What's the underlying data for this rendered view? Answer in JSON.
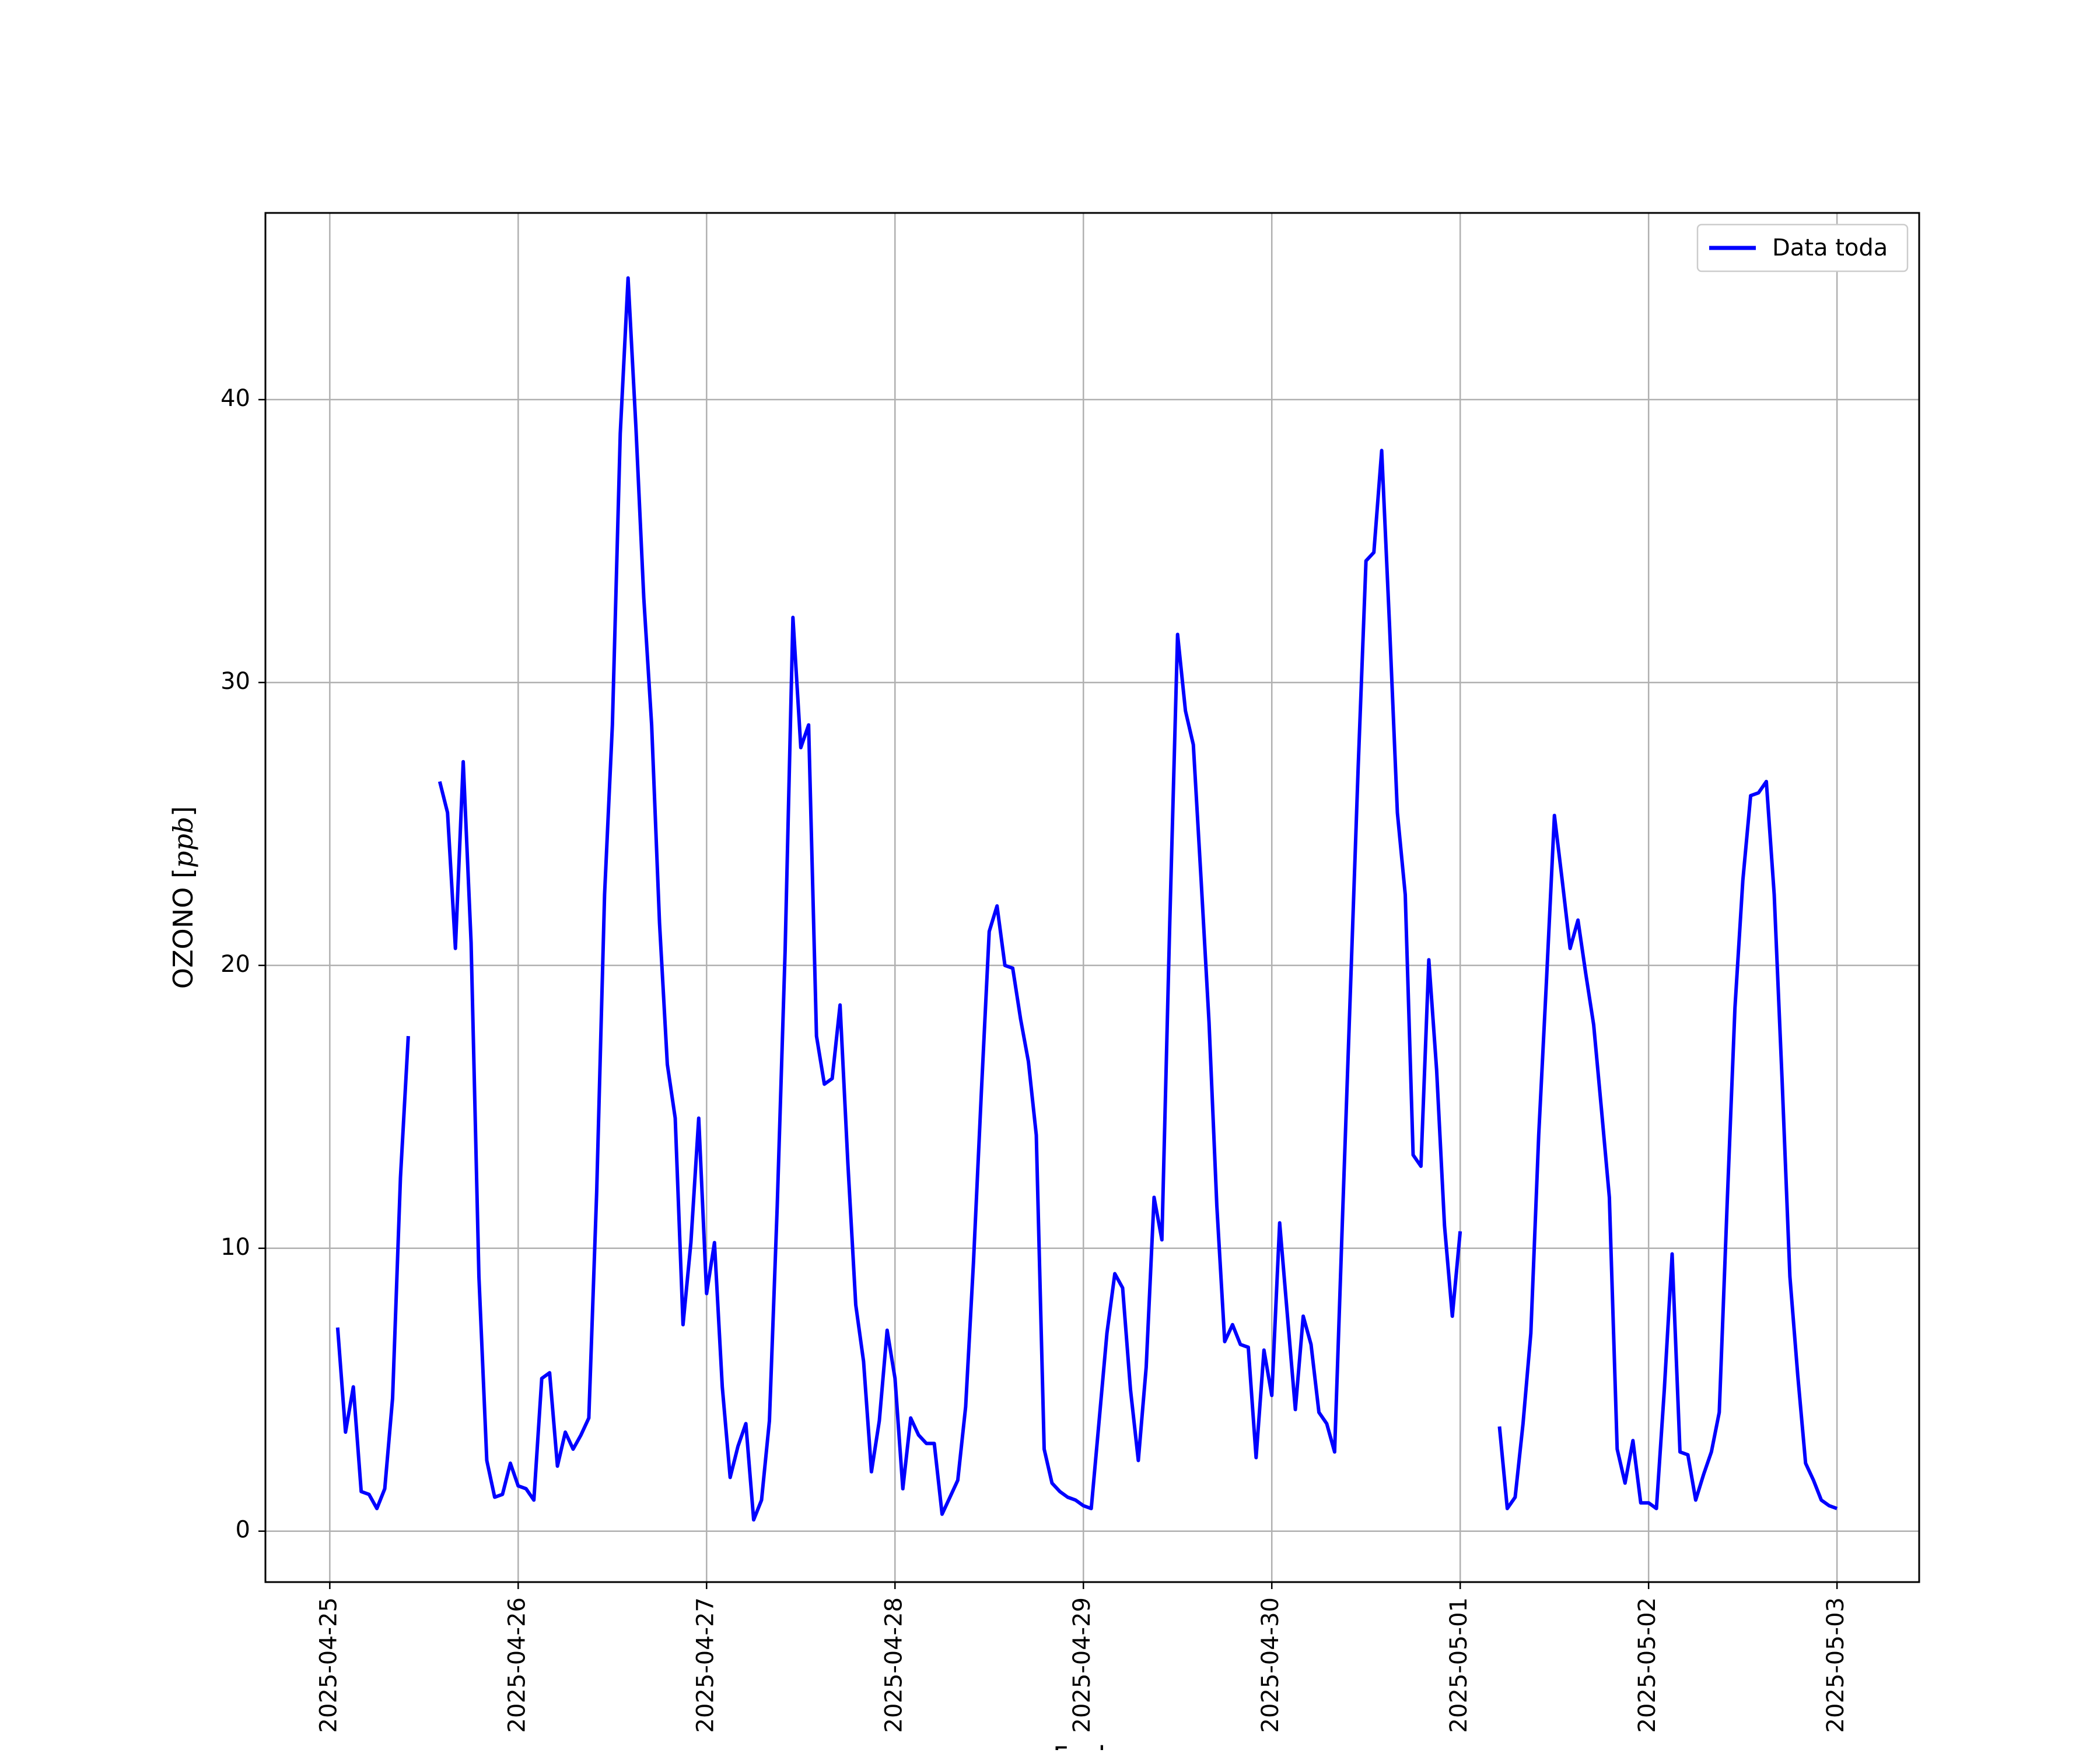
{
  "chart_data": {
    "type": "line",
    "title": "",
    "xlabel": "Fecha",
    "ylabel": "OZONO [ppb]",
    "x_range": [
      "2025-04-24T15:48",
      "2025-05-03T10:28"
    ],
    "y_range": [
      -1.8,
      46.6
    ],
    "x_ticks": [
      "2025-04-25",
      "2025-04-26",
      "2025-04-27",
      "2025-04-28",
      "2025-04-29",
      "2025-04-30",
      "2025-05-01",
      "2025-05-02",
      "2025-05-03"
    ],
    "y_ticks": [
      0,
      10,
      20,
      30,
      40
    ],
    "grid": true,
    "legend_position": "top-right",
    "series": [
      {
        "name": "Data toda",
        "color": "#0000ff",
        "segments": [
          [
            [
              "2025-04-25T01:00",
              7.2
            ],
            [
              "2025-04-25T02:00",
              3.5
            ],
            [
              "2025-04-25T03:00",
              5.1
            ],
            [
              "2025-04-25T04:00",
              1.4
            ],
            [
              "2025-04-25T05:00",
              1.3
            ],
            [
              "2025-04-25T06:00",
              0.8
            ],
            [
              "2025-04-25T07:00",
              1.5
            ],
            [
              "2025-04-25T08:00",
              4.7
            ],
            [
              "2025-04-25T09:00",
              12.5
            ],
            [
              "2025-04-25T10:00",
              17.5
            ]
          ],
          [
            [
              "2025-04-25T14:00",
              26.5
            ],
            [
              "2025-04-25T15:00",
              25.4
            ],
            [
              "2025-04-25T16:00",
              20.6
            ],
            [
              "2025-04-25T17:00",
              27.2
            ],
            [
              "2025-04-25T18:00",
              20.8
            ],
            [
              "2025-04-25T19:00",
              9.0
            ],
            [
              "2025-04-25T20:00",
              2.5
            ],
            [
              "2025-04-25T21:00",
              1.2
            ],
            [
              "2025-04-25T22:00",
              1.3
            ],
            [
              "2025-04-25T23:00",
              2.4
            ],
            [
              "2025-04-26T00:00",
              1.6
            ],
            [
              "2025-04-26T01:00",
              1.5
            ],
            [
              "2025-04-26T02:00",
              1.1
            ],
            [
              "2025-04-26T03:00",
              5.4
            ],
            [
              "2025-04-26T04:00",
              5.6
            ],
            [
              "2025-04-26T05:00",
              2.3
            ],
            [
              "2025-04-26T06:00",
              3.5
            ],
            [
              "2025-04-26T07:00",
              2.9
            ],
            [
              "2025-04-26T08:00",
              3.4
            ],
            [
              "2025-04-26T09:00",
              4.0
            ],
            [
              "2025-04-26T10:00",
              12.0
            ],
            [
              "2025-04-26T11:00",
              22.5
            ],
            [
              "2025-04-26T12:00",
              28.5
            ],
            [
              "2025-04-26T13:00",
              38.8
            ],
            [
              "2025-04-26T14:00",
              44.3
            ],
            [
              "2025-04-26T15:00",
              39.0
            ],
            [
              "2025-04-26T16:00",
              33.0
            ],
            [
              "2025-04-26T17:00",
              28.5
            ],
            [
              "2025-04-26T18:00",
              21.5
            ],
            [
              "2025-04-26T19:00",
              16.5
            ],
            [
              "2025-04-26T20:00",
              14.6
            ],
            [
              "2025-04-26T21:00",
              7.3
            ],
            [
              "2025-04-26T22:00",
              10.2
            ],
            [
              "2025-04-26T23:00",
              14.6
            ],
            [
              "2025-04-27T00:00",
              8.4
            ],
            [
              "2025-04-27T01:00",
              10.2
            ],
            [
              "2025-04-27T02:00",
              5.1
            ],
            [
              "2025-04-27T03:00",
              1.9
            ],
            [
              "2025-04-27T04:00",
              3.0
            ],
            [
              "2025-04-27T05:00",
              3.8
            ],
            [
              "2025-04-27T06:00",
              0.4
            ],
            [
              "2025-04-27T07:00",
              1.1
            ],
            [
              "2025-04-27T08:00",
              3.9
            ],
            [
              "2025-04-27T09:00",
              11.5
            ],
            [
              "2025-04-27T10:00",
              20.5
            ],
            [
              "2025-04-27T11:00",
              32.3
            ],
            [
              "2025-04-27T12:00",
              27.7
            ],
            [
              "2025-04-27T13:00",
              28.5
            ],
            [
              "2025-04-27T14:00",
              17.5
            ],
            [
              "2025-04-27T15:00",
              15.8
            ],
            [
              "2025-04-27T16:00",
              16.0
            ],
            [
              "2025-04-27T17:00",
              18.6
            ],
            [
              "2025-04-27T18:00",
              13.0
            ],
            [
              "2025-04-27T19:00",
              8.0
            ],
            [
              "2025-04-27T20:00",
              6.0
            ],
            [
              "2025-04-27T21:00",
              2.1
            ],
            [
              "2025-04-27T22:00",
              3.9
            ],
            [
              "2025-04-27T23:00",
              7.1
            ],
            [
              "2025-04-28T00:00",
              5.4
            ],
            [
              "2025-04-28T01:00",
              1.5
            ],
            [
              "2025-04-28T02:00",
              4.0
            ],
            [
              "2025-04-28T03:00",
              3.4
            ],
            [
              "2025-04-28T04:00",
              3.1
            ],
            [
              "2025-04-28T05:00",
              3.1
            ],
            [
              "2025-04-28T06:00",
              0.6
            ],
            [
              "2025-04-28T07:00",
              1.2
            ],
            [
              "2025-04-28T08:00",
              1.8
            ],
            [
              "2025-04-28T09:00",
              4.4
            ],
            [
              "2025-04-28T10:00",
              9.5
            ],
            [
              "2025-04-28T11:00",
              15.5
            ],
            [
              "2025-04-28T12:00",
              21.2
            ],
            [
              "2025-04-28T13:00",
              22.1
            ],
            [
              "2025-04-28T14:00",
              20.0
            ],
            [
              "2025-04-28T15:00",
              19.9
            ],
            [
              "2025-04-28T16:00",
              18.1
            ],
            [
              "2025-04-28T17:00",
              16.6
            ],
            [
              "2025-04-28T18:00",
              14.0
            ],
            [
              "2025-04-28T19:00",
              2.9
            ],
            [
              "2025-04-28T20:00",
              1.7
            ],
            [
              "2025-04-28T21:00",
              1.4
            ],
            [
              "2025-04-28T22:00",
              1.2
            ],
            [
              "2025-04-28T23:00",
              1.1
            ],
            [
              "2025-04-29T00:00",
              0.9
            ],
            [
              "2025-04-29T01:00",
              0.8
            ],
            [
              "2025-04-29T02:00",
              3.9
            ],
            [
              "2025-04-29T03:00",
              7.0
            ],
            [
              "2025-04-29T04:00",
              9.1
            ],
            [
              "2025-04-29T05:00",
              8.6
            ],
            [
              "2025-04-29T06:00",
              5.0
            ],
            [
              "2025-04-29T07:00",
              2.5
            ],
            [
              "2025-04-29T08:00",
              5.8
            ],
            [
              "2025-04-29T09:00",
              11.8
            ],
            [
              "2025-04-29T10:00",
              10.3
            ],
            [
              "2025-04-29T11:00",
              21.5
            ],
            [
              "2025-04-29T12:00",
              31.7
            ],
            [
              "2025-04-29T13:00",
              29.0
            ],
            [
              "2025-04-29T14:00",
              27.8
            ],
            [
              "2025-04-29T15:00",
              23.0
            ],
            [
              "2025-04-29T16:00",
              18.0
            ],
            [
              "2025-04-29T17:00",
              11.5
            ],
            [
              "2025-04-29T18:00",
              6.7
            ],
            [
              "2025-04-29T19:00",
              7.3
            ],
            [
              "2025-04-29T20:00",
              6.6
            ],
            [
              "2025-04-29T21:00",
              6.5
            ],
            [
              "2025-04-29T22:00",
              2.6
            ],
            [
              "2025-04-29T23:00",
              6.4
            ],
            [
              "2025-04-30T00:00",
              4.8
            ],
            [
              "2025-04-30T01:00",
              10.9
            ],
            [
              "2025-04-30T02:00",
              7.6
            ],
            [
              "2025-04-30T03:00",
              4.3
            ],
            [
              "2025-04-30T04:00",
              7.6
            ],
            [
              "2025-04-30T05:00",
              6.6
            ],
            [
              "2025-04-30T06:00",
              4.2
            ],
            [
              "2025-04-30T07:00",
              3.8
            ],
            [
              "2025-04-30T08:00",
              2.8
            ],
            [
              "2025-04-30T09:00",
              11.0
            ],
            [
              "2025-04-30T10:00",
              19.0
            ],
            [
              "2025-04-30T11:00",
              27.0
            ],
            [
              "2025-04-30T12:00",
              34.3
            ],
            [
              "2025-04-30T13:00",
              34.6
            ],
            [
              "2025-04-30T14:00",
              38.2
            ],
            [
              "2025-04-30T15:00",
              32.0
            ],
            [
              "2025-04-30T16:00",
              25.4
            ],
            [
              "2025-04-30T17:00",
              22.5
            ],
            [
              "2025-04-30T18:00",
              13.3
            ],
            [
              "2025-04-30T19:00",
              12.9
            ],
            [
              "2025-04-30T20:00",
              20.2
            ],
            [
              "2025-04-30T21:00",
              16.3
            ],
            [
              "2025-04-30T22:00",
              10.8
            ],
            [
              "2025-04-30T23:00",
              7.6
            ],
            [
              "2025-05-01T00:00",
              10.6
            ]
          ],
          [
            [
              "2025-05-01T05:00",
              3.7
            ],
            [
              "2025-05-01T06:00",
              0.8
            ],
            [
              "2025-05-01T07:00",
              1.2
            ],
            [
              "2025-05-01T08:00",
              3.8
            ],
            [
              "2025-05-01T09:00",
              7.0
            ],
            [
              "2025-05-01T10:00",
              14.0
            ],
            [
              "2025-05-01T11:00",
              19.5
            ],
            [
              "2025-05-01T12:00",
              25.3
            ],
            [
              "2025-05-01T13:00",
              23.0
            ],
            [
              "2025-05-01T14:00",
              20.6
            ],
            [
              "2025-05-01T15:00",
              21.6
            ],
            [
              "2025-05-01T16:00",
              19.7
            ],
            [
              "2025-05-01T17:00",
              17.9
            ],
            [
              "2025-05-01T18:00",
              14.9
            ],
            [
              "2025-05-01T19:00",
              11.8
            ],
            [
              "2025-05-01T20:00",
              2.9
            ],
            [
              "2025-05-01T21:00",
              1.7
            ],
            [
              "2025-05-01T22:00",
              3.2
            ],
            [
              "2025-05-01T23:00",
              1.0
            ],
            [
              "2025-05-02T00:00",
              1.0
            ],
            [
              "2025-05-02T01:00",
              0.8
            ],
            [
              "2025-05-02T02:00",
              5.0
            ],
            [
              "2025-05-02T03:00",
              9.8
            ],
            [
              "2025-05-02T04:00",
              2.8
            ],
            [
              "2025-05-02T05:00",
              2.7
            ],
            [
              "2025-05-02T06:00",
              1.1
            ],
            [
              "2025-05-02T07:00",
              2.0
            ],
            [
              "2025-05-02T08:00",
              2.8
            ],
            [
              "2025-05-02T09:00",
              4.2
            ],
            [
              "2025-05-02T10:00",
              11.5
            ],
            [
              "2025-05-02T11:00",
              18.5
            ],
            [
              "2025-05-02T12:00",
              23.0
            ],
            [
              "2025-05-02T13:00",
              26.0
            ],
            [
              "2025-05-02T14:00",
              26.1
            ],
            [
              "2025-05-02T15:00",
              26.5
            ],
            [
              "2025-05-02T16:00",
              22.5
            ],
            [
              "2025-05-02T17:00",
              16.0
            ],
            [
              "2025-05-02T18:00",
              9.0
            ],
            [
              "2025-05-02T19:00",
              5.5
            ],
            [
              "2025-05-02T20:00",
              2.4
            ],
            [
              "2025-05-02T21:00",
              1.8
            ],
            [
              "2025-05-02T22:00",
              1.1
            ],
            [
              "2025-05-02T23:00",
              0.9
            ],
            [
              "2025-05-03T00:00",
              0.8
            ]
          ]
        ]
      }
    ]
  }
}
